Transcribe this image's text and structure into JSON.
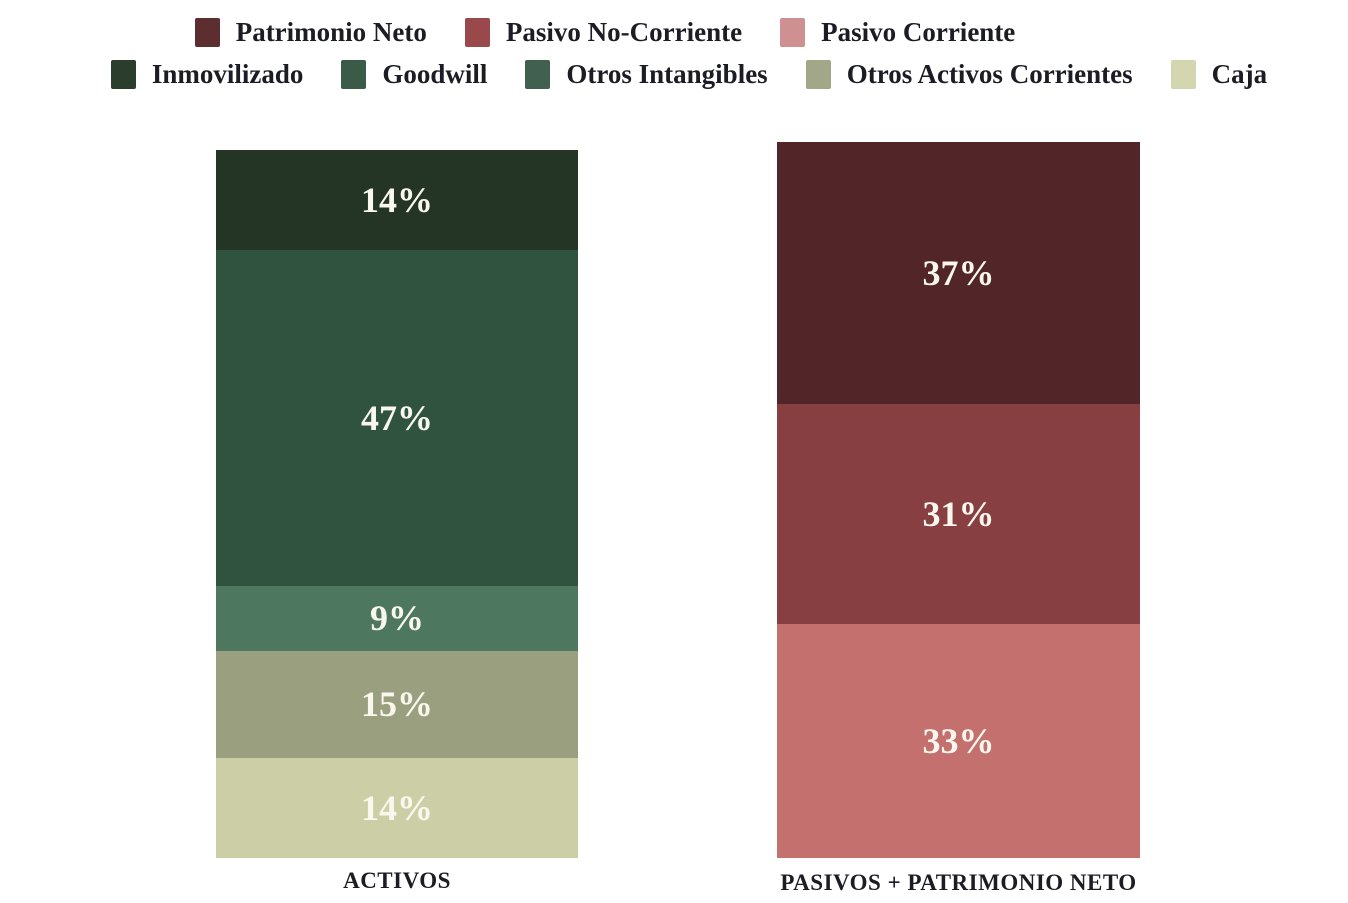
{
  "chart_data": {
    "type": "bar",
    "subtype": "stacked-percentage-columns",
    "title": "",
    "xlabel": "",
    "ylabel": "",
    "ylim": [
      0,
      100
    ],
    "grid": false,
    "legend_position": "top",
    "categories": [
      "ACTIVOS",
      "PASIVOS + PATRIMONIO NETO"
    ],
    "bars": [
      {
        "category": "ACTIVOS",
        "segments": [
          {
            "name": "Inmovilizado",
            "value": 14,
            "label": "14%",
            "color": "#243425"
          },
          {
            "name": "Goodwill",
            "value": 47,
            "label": "47%",
            "color": "#305340"
          },
          {
            "name": "Otros Intangibles",
            "value": 9,
            "label": "9%",
            "color": "#4E7760"
          },
          {
            "name": "Otros Activos Corrientes",
            "value": 15,
            "label": "15%",
            "color": "#9AA07F"
          },
          {
            "name": "Caja",
            "value": 14,
            "label": "14%",
            "color": "#CCCFA6"
          }
        ]
      },
      {
        "category": "PASIVOS + PATRIMONIO NETO",
        "segments": [
          {
            "name": "Patrimonio Neto",
            "value": 37,
            "label": "37%",
            "color": "#522629"
          },
          {
            "name": "Pasivo No-Corriente",
            "value": 31,
            "label": "31%",
            "color": "#873F42"
          },
          {
            "name": "Pasivo Corriente",
            "value": 33,
            "label": "33%",
            "color": "#C3706E"
          }
        ]
      }
    ],
    "legend": {
      "rows": [
        [
          {
            "label": "Patrimonio Neto",
            "color": "#5C2E30"
          },
          {
            "label": "Pasivo No-Corriente",
            "color": "#99494B"
          },
          {
            "label": "Pasivo Corriente",
            "color": "#CE9090"
          }
        ],
        [
          {
            "label": "Inmovilizado",
            "color": "#2B3D2C"
          },
          {
            "label": "Goodwill",
            "color": "#3A5B47"
          },
          {
            "label": "Otros Intangibles",
            "color": "#42604F"
          },
          {
            "label": "Otros Activos Corrientes",
            "color": "#A2A887"
          },
          {
            "label": "Caja",
            "color": "#D3D6AE"
          }
        ]
      ]
    },
    "colors": {
      "background": "#FFFFFF",
      "segment_label_text": "#FAF8EE",
      "axis_label_text": "#1C1C24",
      "legend_text": "#1C1C24"
    }
  }
}
